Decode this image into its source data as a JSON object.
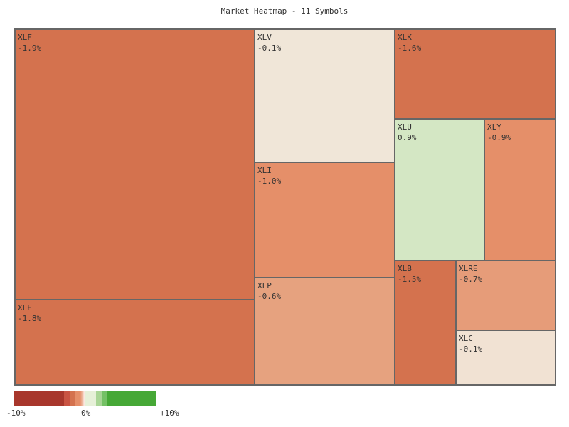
{
  "chart_data": {
    "type": "treemap",
    "title": "Market Heatmap - 11 Symbols",
    "tiles": [
      {
        "symbol": "XLF",
        "change": "-1.9%",
        "value": -1.9,
        "color": "#d4724e"
      },
      {
        "symbol": "XLE",
        "change": "-1.8%",
        "value": -1.8,
        "color": "#d4724e"
      },
      {
        "symbol": "XLV",
        "change": "-0.1%",
        "value": -0.1,
        "color": "#f0e6d8"
      },
      {
        "symbol": "XLI",
        "change": "-1.0%",
        "value": -1.0,
        "color": "#e58f69"
      },
      {
        "symbol": "XLP",
        "change": "-0.6%",
        "value": -0.6,
        "color": "#e6a27f"
      },
      {
        "symbol": "XLK",
        "change": "-1.6%",
        "value": -1.6,
        "color": "#d4724e"
      },
      {
        "symbol": "XLU",
        "change": "0.9%",
        "value": 0.9,
        "color": "#d4e7c4"
      },
      {
        "symbol": "XLY",
        "change": "-0.9%",
        "value": -0.9,
        "color": "#e58f69"
      },
      {
        "symbol": "XLB",
        "change": "-1.5%",
        "value": -1.5,
        "color": "#d4724e"
      },
      {
        "symbol": "XLRE",
        "change": "-0.7%",
        "value": -0.7,
        "color": "#e69c79"
      },
      {
        "symbol": "XLC",
        "change": "-0.1%",
        "value": -0.1,
        "color": "#f1e2d3"
      }
    ],
    "legend": {
      "min_label": "-10%",
      "mid_label": "0%",
      "max_label": "+10%",
      "colors": [
        "#a8372c",
        "#c95443",
        "#d4724e",
        "#e58f69",
        "#f3e6dc",
        "#e6f0d8",
        "#a9d596",
        "#74c165",
        "#46a836"
      ]
    }
  }
}
